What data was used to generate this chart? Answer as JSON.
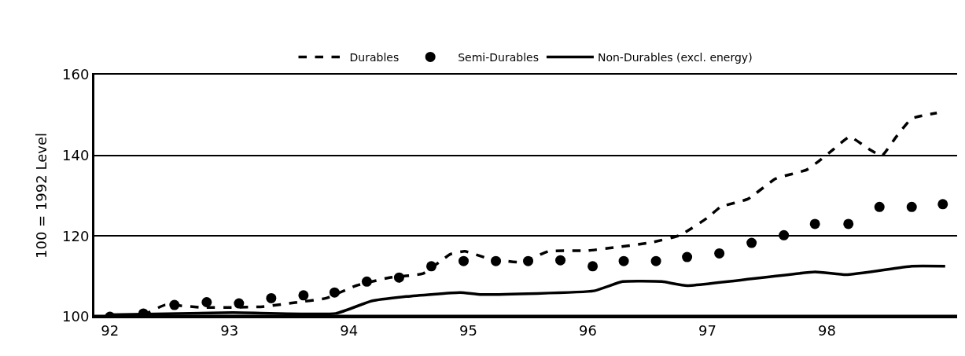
{
  "chart_data": {
    "type": "line",
    "ylabel": "100 = 1992 Level",
    "xlim": [
      91.87,
      99.09
    ],
    "ylim": [
      100,
      160
    ],
    "xticks": [
      92,
      93,
      94,
      95,
      96,
      97,
      98
    ],
    "yticks": [
      100,
      120,
      140,
      160
    ],
    "grid": "y",
    "legend": "top",
    "series": [
      {
        "name": "Durables",
        "line_style": "dashed",
        "marker": "none",
        "color": "#000000",
        "x": [
          92.0,
          92.28,
          92.46,
          92.76,
          93.02,
          93.28,
          93.55,
          93.81,
          94.06,
          94.34,
          94.62,
          94.85,
          94.97,
          95.16,
          95.44,
          95.67,
          96.0,
          96.26,
          96.53,
          96.77,
          97.0,
          97.11,
          97.34,
          97.57,
          97.83,
          97.93,
          98.06,
          98.19,
          98.35,
          98.46,
          98.58,
          98.71,
          98.92
        ],
        "values": [
          100,
          100.5,
          102.9,
          102.3,
          102.3,
          102.5,
          103.5,
          104.6,
          107.7,
          109.7,
          110.7,
          115.5,
          116.2,
          114.5,
          113.5,
          116.2,
          116.4,
          117.3,
          118.4,
          120.2,
          124.5,
          127.2,
          129.2,
          134.2,
          136.4,
          138.5,
          141.6,
          144.6,
          141.6,
          139.9,
          144.6,
          149.1,
          150.5
        ]
      },
      {
        "name": "Semi-Durables",
        "type": "scatter",
        "marker": "circle",
        "color": "#000000",
        "x": [
          92.0,
          92.28,
          92.54,
          92.81,
          93.08,
          93.35,
          93.62,
          93.88,
          94.15,
          94.42,
          94.69,
          94.96,
          95.23,
          95.5,
          95.77,
          96.04,
          96.3,
          96.57,
          96.83,
          97.1,
          97.37,
          97.64,
          97.9,
          98.18,
          98.44,
          98.71,
          98.97
        ],
        "values": [
          100,
          100.8,
          102.9,
          103.6,
          103.3,
          104.6,
          105.3,
          106,
          108.7,
          109.7,
          112.5,
          113.8,
          113.8,
          113.8,
          114,
          112.5,
          113.8,
          113.8,
          114.8,
          115.7,
          118.3,
          120.2,
          123,
          123,
          127.2,
          127.2,
          127.9
        ]
      },
      {
        "name": "Non-Durables (excl. energy)",
        "line_style": "solid",
        "marker": "none",
        "color": "#000000",
        "x": [
          92.0,
          93.03,
          93.89,
          94.19,
          94.48,
          94.93,
          95.11,
          96.05,
          96.29,
          96.62,
          96.83,
          97.9,
          98.16,
          98.71,
          98.99
        ],
        "values": [
          100.5,
          101,
          100.8,
          103.9,
          105,
          106,
          105.5,
          106.4,
          108.7,
          108.7,
          107.7,
          111.1,
          110.4,
          112.5,
          112.5
        ]
      }
    ]
  }
}
